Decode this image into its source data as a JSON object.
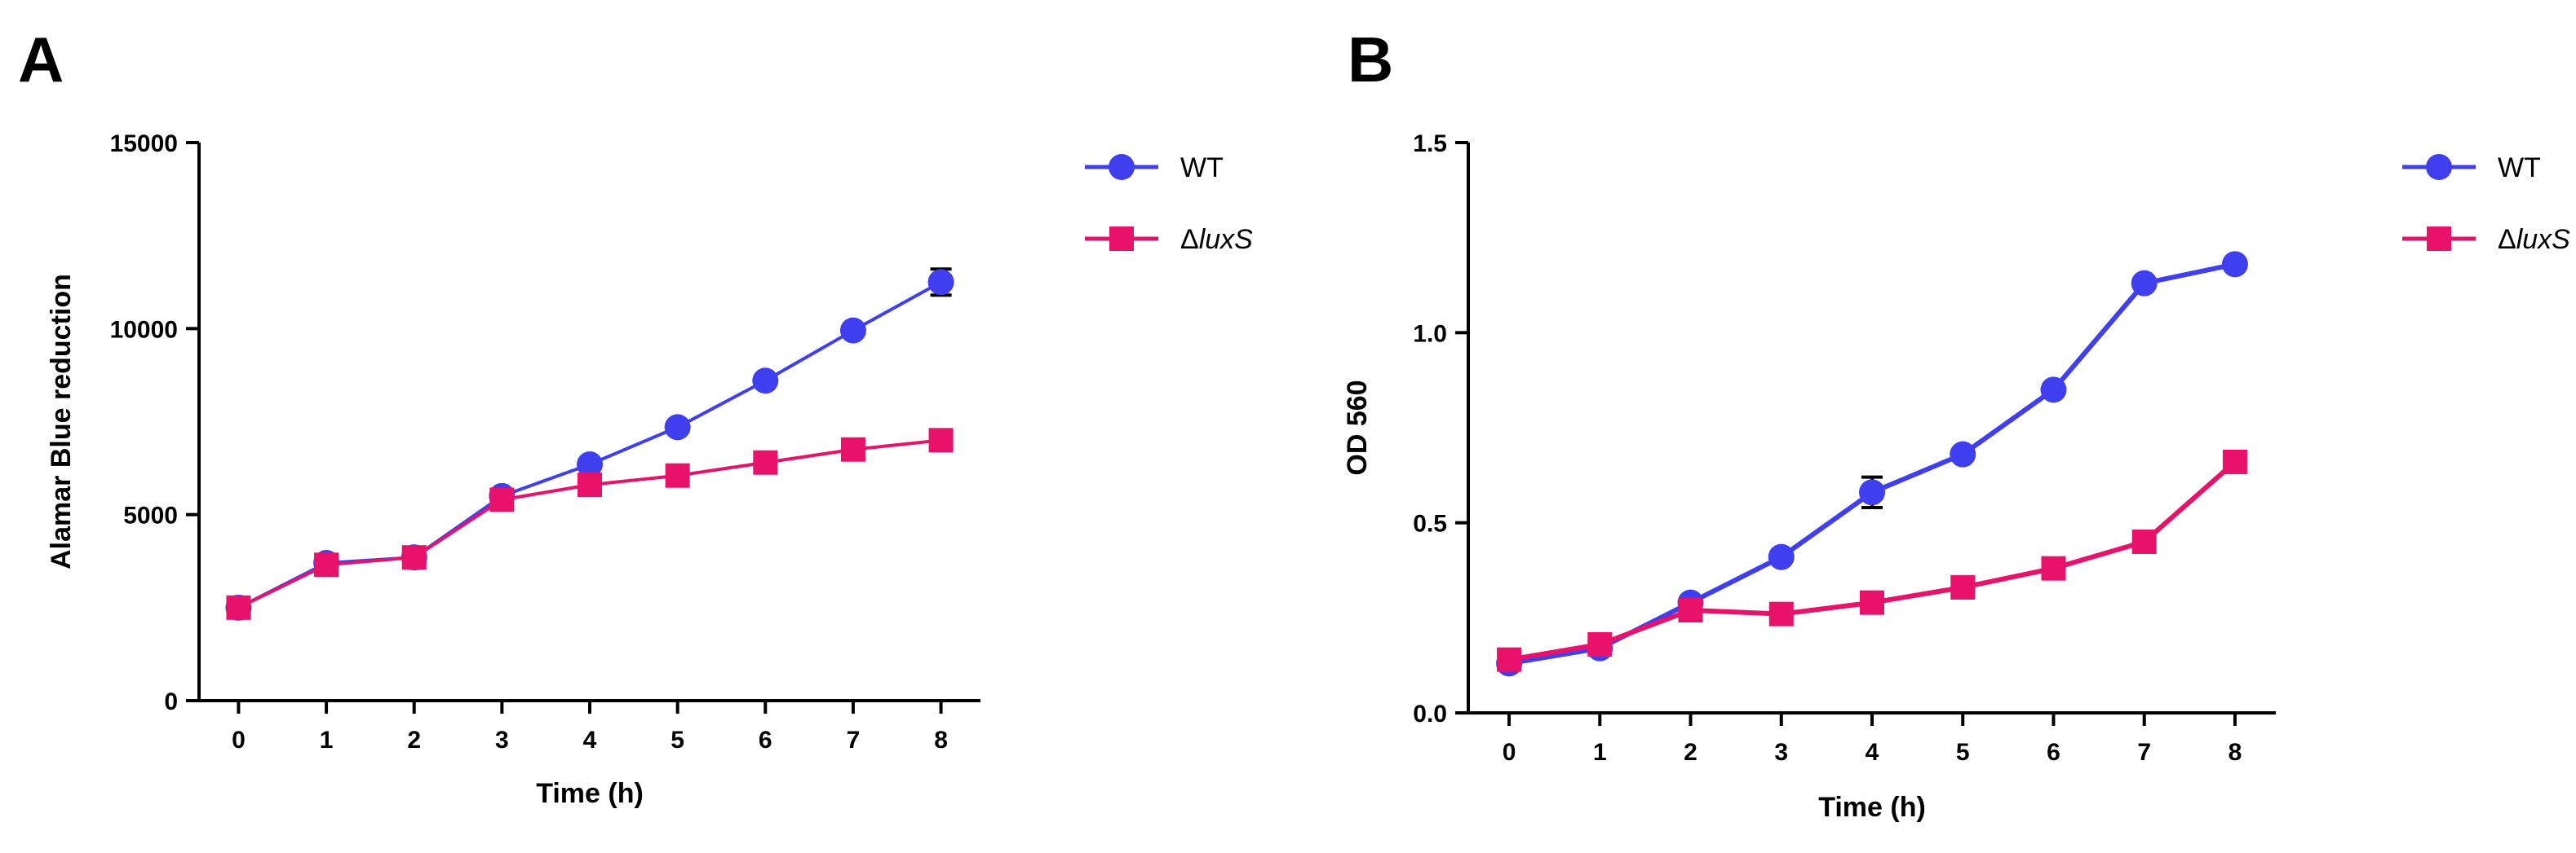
{
  "chart_data": [
    {
      "type": "line",
      "panel": "A",
      "title": "",
      "xlabel": "Time (h)",
      "ylabel": "Alamar Blue reduction",
      "x": [
        0,
        1,
        2,
        3,
        4,
        5,
        6,
        7,
        8
      ],
      "xticks": [
        "0",
        "1",
        "2",
        "3",
        "4",
        "5",
        "6",
        "7",
        "8"
      ],
      "xlim": [
        -0.45,
        8.45
      ],
      "ylim": [
        0,
        15000
      ],
      "yticks": [
        0,
        5000,
        10000,
        15000
      ],
      "yticklabels": [
        "0",
        "5000",
        "10000",
        "15000"
      ],
      "grid": false,
      "legend": "top-right",
      "series": [
        {
          "name": "WT",
          "name_prefix": "",
          "name_italic": "",
          "marker": "circle",
          "color": "#3F3FF0",
          "values": [
            2500,
            3700,
            3850,
            5500,
            6350,
            7350,
            8600,
            9950,
            11250
          ],
          "errors": [
            0,
            0,
            0,
            0,
            0,
            0,
            0,
            0,
            350
          ]
        },
        {
          "name": "ΔluxS",
          "name_prefix": "Δ",
          "name_italic": "luxS",
          "marker": "square",
          "color": "#E8126B",
          "values": [
            2500,
            3650,
            3850,
            5400,
            5800,
            6050,
            6400,
            6750,
            7000
          ],
          "errors": [
            0,
            0,
            0,
            0,
            0,
            0,
            0,
            0,
            0
          ]
        }
      ]
    },
    {
      "type": "line",
      "panel": "B",
      "title": "",
      "xlabel": "Time (h)",
      "ylabel": "OD 560",
      "x": [
        0,
        1,
        2,
        3,
        4,
        5,
        6,
        7,
        8
      ],
      "xticks": [
        "0",
        "1",
        "2",
        "3",
        "4",
        "5",
        "6",
        "7",
        "8"
      ],
      "xlim": [
        -0.45,
        8.45
      ],
      "ylim": [
        0,
        1.5
      ],
      "yticks": [
        0,
        0.5,
        1.0,
        1.5
      ],
      "yticklabels": [
        "0.0",
        "0.5",
        "1.0",
        "1.5"
      ],
      "grid": false,
      "legend": "top-right",
      "series": [
        {
          "name": "WT",
          "name_prefix": "",
          "name_italic": "",
          "marker": "circle",
          "color": "#3F3FF0",
          "values": [
            0.13,
            0.17,
            0.29,
            0.41,
            0.58,
            0.68,
            0.85,
            1.13,
            1.18
          ],
          "errors": [
            0,
            0,
            0,
            0,
            0.04,
            0,
            0,
            0,
            0
          ]
        },
        {
          "name": "ΔluxS",
          "name_prefix": "Δ",
          "name_italic": "luxS",
          "marker": "square",
          "color": "#E8126B",
          "values": [
            0.14,
            0.18,
            0.27,
            0.26,
            0.29,
            0.33,
            0.38,
            0.45,
            0.66
          ],
          "errors": [
            0,
            0,
            0,
            0,
            0,
            0,
            0,
            0,
            0
          ]
        }
      ]
    }
  ]
}
